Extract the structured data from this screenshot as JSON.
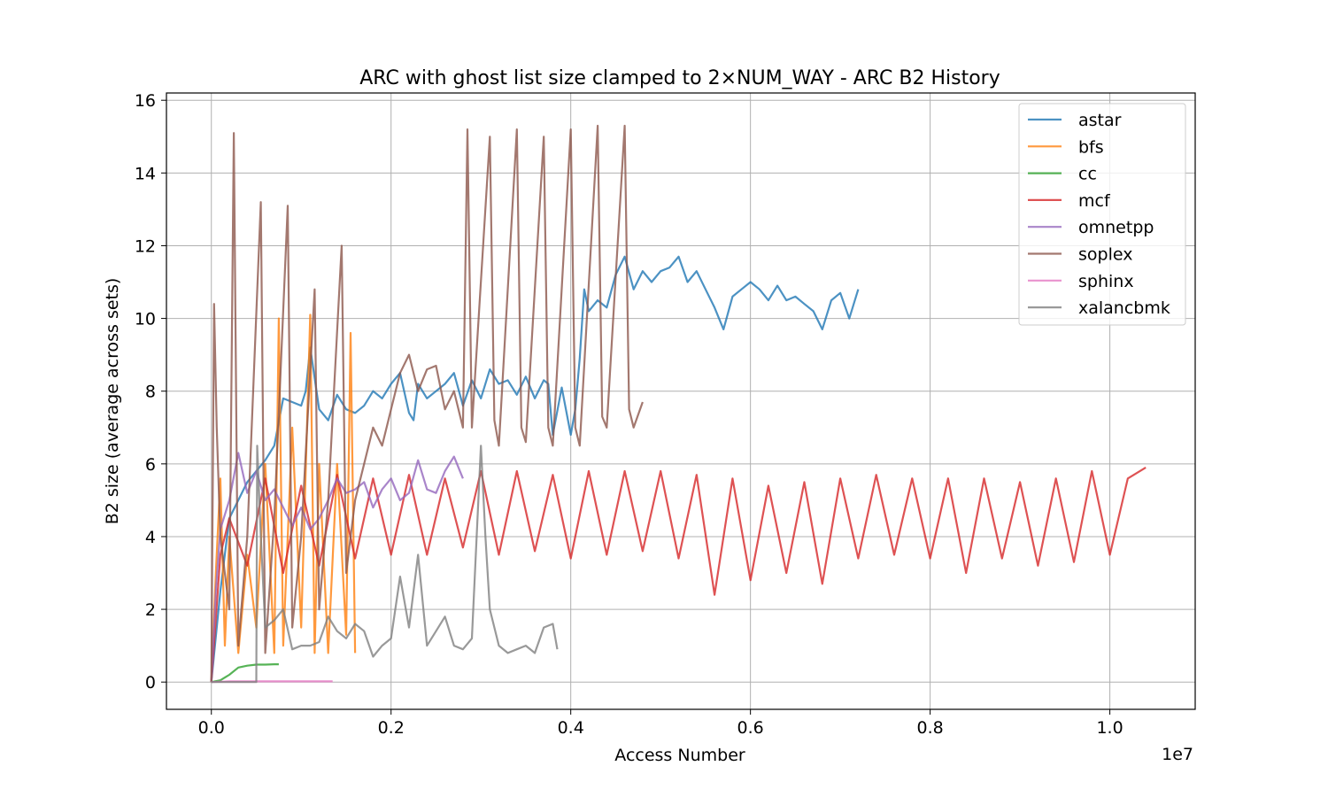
{
  "chart_data": {
    "type": "line",
    "title": "ARC with ghost list size clamped to 2×NUM_WAY - ARC B2 History",
    "xlabel": "Access Number",
    "ylabel": "B2 size (average across sets)",
    "x_offset_label": "1e7",
    "x_scale": 10000000,
    "xlim": [
      -0.05,
      1.095
    ],
    "ylim": [
      -0.75,
      16.2
    ],
    "x_ticks": [
      0.0,
      0.2,
      0.4,
      0.6,
      0.8,
      1.0
    ],
    "x_tick_labels": [
      "0.0",
      "0.2",
      "0.4",
      "0.6",
      "0.8",
      "1.0"
    ],
    "y_ticks": [
      0,
      2,
      4,
      6,
      8,
      10,
      12,
      14,
      16
    ],
    "y_tick_labels": [
      "0",
      "2",
      "4",
      "6",
      "8",
      "10",
      "12",
      "14",
      "16"
    ],
    "grid": true,
    "legend_position": "top-right",
    "series": [
      {
        "name": "astar",
        "color": "#1f77b4",
        "x": [
          0.0,
          0.01,
          0.02,
          0.04,
          0.06,
          0.07,
          0.08,
          0.1,
          0.105,
          0.11,
          0.12,
          0.13,
          0.14,
          0.15,
          0.16,
          0.17,
          0.18,
          0.19,
          0.2,
          0.21,
          0.22,
          0.225,
          0.23,
          0.24,
          0.25,
          0.26,
          0.27,
          0.28,
          0.29,
          0.3,
          0.31,
          0.32,
          0.33,
          0.34,
          0.35,
          0.36,
          0.37,
          0.375,
          0.38,
          0.39,
          0.4,
          0.405,
          0.41,
          0.415,
          0.42,
          0.43,
          0.44,
          0.45,
          0.46,
          0.47,
          0.48,
          0.49,
          0.5,
          0.51,
          0.52,
          0.53,
          0.54,
          0.55,
          0.56,
          0.57,
          0.58,
          0.59,
          0.6,
          0.61,
          0.62,
          0.63,
          0.64,
          0.65,
          0.66,
          0.67,
          0.68,
          0.69,
          0.7,
          0.71,
          0.72
        ],
        "y": [
          0.0,
          2.5,
          4.5,
          5.5,
          6.1,
          6.5,
          7.8,
          7.6,
          8.0,
          9.2,
          7.5,
          7.2,
          7.9,
          7.5,
          7.4,
          7.6,
          8.0,
          7.8,
          8.2,
          8.5,
          7.4,
          7.2,
          8.2,
          7.8,
          8.0,
          8.2,
          8.5,
          7.6,
          8.3,
          7.8,
          8.6,
          8.2,
          8.3,
          7.9,
          8.4,
          7.8,
          8.3,
          8.2,
          6.8,
          8.1,
          6.8,
          7.5,
          8.9,
          10.8,
          10.2,
          10.5,
          10.3,
          11.2,
          11.7,
          10.8,
          11.3,
          11.0,
          11.3,
          11.4,
          11.7,
          11.0,
          11.3,
          10.8,
          10.3,
          9.7,
          10.6,
          10.8,
          11.0,
          10.8,
          10.5,
          10.9,
          10.5,
          10.6,
          10.4,
          10.2,
          9.7,
          10.5,
          10.7,
          10.0,
          10.8
        ]
      },
      {
        "name": "bfs",
        "color": "#ff7f0e",
        "x": [
          0.0,
          0.005,
          0.01,
          0.015,
          0.02,
          0.03,
          0.04,
          0.05,
          0.06,
          0.07,
          0.075,
          0.08,
          0.09,
          0.1,
          0.11,
          0.115,
          0.12,
          0.13,
          0.14,
          0.15,
          0.155,
          0.16
        ],
        "y": [
          0.0,
          3.0,
          5.6,
          1.0,
          4.0,
          0.8,
          3.5,
          1.5,
          6.0,
          0.8,
          10.0,
          1.0,
          7.0,
          1.5,
          10.1,
          0.8,
          6.0,
          0.8,
          6.0,
          1.3,
          9.6,
          0.8
        ]
      },
      {
        "name": "cc",
        "color": "#2ca02c",
        "x": [
          0.0,
          0.01,
          0.02,
          0.03,
          0.04,
          0.05,
          0.06,
          0.07,
          0.075
        ],
        "y": [
          0.0,
          0.05,
          0.2,
          0.4,
          0.45,
          0.48,
          0.48,
          0.49,
          0.49
        ]
      },
      {
        "name": "mcf",
        "color": "#d62728",
        "x": [
          0.0,
          0.01,
          0.02,
          0.04,
          0.06,
          0.08,
          0.1,
          0.12,
          0.14,
          0.16,
          0.18,
          0.2,
          0.22,
          0.24,
          0.26,
          0.28,
          0.3,
          0.32,
          0.34,
          0.36,
          0.38,
          0.4,
          0.42,
          0.44,
          0.46,
          0.48,
          0.5,
          0.52,
          0.54,
          0.56,
          0.58,
          0.6,
          0.62,
          0.64,
          0.66,
          0.68,
          0.7,
          0.72,
          0.74,
          0.76,
          0.78,
          0.8,
          0.82,
          0.84,
          0.86,
          0.88,
          0.9,
          0.92,
          0.94,
          0.96,
          0.98,
          1.0,
          1.02,
          1.04
        ],
        "y": [
          0.0,
          3.5,
          4.5,
          3.2,
          5.6,
          3.0,
          5.4,
          3.2,
          5.7,
          3.4,
          5.6,
          3.5,
          5.7,
          3.5,
          5.6,
          3.7,
          5.8,
          3.5,
          5.8,
          3.6,
          5.7,
          3.4,
          5.8,
          3.5,
          5.8,
          3.6,
          5.8,
          3.4,
          5.7,
          2.4,
          5.6,
          2.8,
          5.4,
          3.0,
          5.5,
          2.7,
          5.6,
          3.4,
          5.7,
          3.5,
          5.6,
          3.4,
          5.6,
          3.0,
          5.6,
          3.4,
          5.5,
          3.2,
          5.6,
          3.3,
          5.8,
          3.5,
          5.6,
          5.9
        ]
      },
      {
        "name": "omnetpp",
        "color": "#9467bd",
        "x": [
          0.0,
          0.005,
          0.01,
          0.02,
          0.03,
          0.04,
          0.05,
          0.06,
          0.07,
          0.08,
          0.09,
          0.1,
          0.11,
          0.12,
          0.13,
          0.14,
          0.15,
          0.16,
          0.17,
          0.18,
          0.19,
          0.2,
          0.21,
          0.22,
          0.23,
          0.24,
          0.25,
          0.26,
          0.27,
          0.28
        ],
        "y": [
          0.0,
          2.5,
          4.2,
          5.0,
          6.3,
          5.2,
          5.8,
          5.0,
          5.3,
          4.8,
          4.3,
          4.8,
          4.2,
          4.5,
          5.0,
          5.6,
          5.2,
          5.3,
          5.5,
          4.8,
          5.3,
          5.6,
          5.0,
          5.2,
          6.1,
          5.3,
          5.2,
          5.8,
          6.2,
          5.6
        ]
      },
      {
        "name": "soplex",
        "color": "#8c564b",
        "x": [
          0.0,
          0.003,
          0.006,
          0.01,
          0.02,
          0.025,
          0.03,
          0.04,
          0.055,
          0.06,
          0.07,
          0.085,
          0.09,
          0.1,
          0.115,
          0.12,
          0.13,
          0.145,
          0.15,
          0.16,
          0.17,
          0.18,
          0.19,
          0.2,
          0.21,
          0.22,
          0.23,
          0.24,
          0.25,
          0.26,
          0.27,
          0.28,
          0.285,
          0.29,
          0.31,
          0.315,
          0.32,
          0.34,
          0.345,
          0.35,
          0.37,
          0.375,
          0.38,
          0.4,
          0.405,
          0.41,
          0.43,
          0.435,
          0.44,
          0.46,
          0.465,
          0.47,
          0.48
        ],
        "y": [
          0.0,
          10.4,
          7.0,
          4.0,
          2.0,
          15.1,
          1.0,
          4.0,
          13.2,
          0.8,
          4.5,
          13.1,
          1.5,
          4.0,
          10.8,
          2.0,
          5.0,
          12.0,
          3.0,
          5.0,
          6.0,
          7.0,
          6.5,
          7.5,
          8.5,
          9.0,
          8.0,
          8.6,
          8.7,
          7.5,
          8.0,
          7.0,
          15.2,
          7.0,
          15.0,
          7.2,
          6.5,
          15.2,
          7.0,
          6.6,
          15.0,
          7.0,
          6.5,
          15.2,
          7.0,
          6.5,
          15.3,
          7.3,
          7.0,
          15.3,
          7.5,
          7.0,
          7.7
        ]
      },
      {
        "name": "sphinx",
        "color": "#e377c2",
        "x": [
          0.0,
          0.02,
          0.04,
          0.06,
          0.08,
          0.1,
          0.12,
          0.135
        ],
        "y": [
          0.0,
          0.02,
          0.02,
          0.02,
          0.02,
          0.02,
          0.02,
          0.02
        ]
      },
      {
        "name": "xalancbmk",
        "color": "#7f7f7f",
        "x": [
          0.0,
          0.01,
          0.02,
          0.03,
          0.04,
          0.05,
          0.051,
          0.055,
          0.06,
          0.07,
          0.08,
          0.09,
          0.1,
          0.11,
          0.12,
          0.13,
          0.14,
          0.15,
          0.16,
          0.17,
          0.18,
          0.19,
          0.2,
          0.21,
          0.22,
          0.23,
          0.24,
          0.25,
          0.26,
          0.27,
          0.28,
          0.29,
          0.3,
          0.305,
          0.31,
          0.32,
          0.33,
          0.34,
          0.35,
          0.36,
          0.37,
          0.38,
          0.385
        ],
        "y": [
          0.0,
          0.0,
          0.0,
          0.0,
          0.0,
          0.0,
          6.5,
          4.0,
          1.5,
          1.7,
          2.0,
          0.9,
          1.0,
          1.0,
          1.1,
          1.8,
          1.4,
          1.2,
          1.6,
          1.4,
          0.7,
          1.0,
          1.2,
          2.9,
          1.5,
          3.5,
          1.0,
          1.4,
          1.8,
          1.0,
          0.9,
          1.2,
          6.5,
          4.0,
          2.0,
          1.0,
          0.8,
          0.9,
          1.0,
          0.8,
          1.5,
          1.6,
          0.9
        ]
      }
    ]
  }
}
